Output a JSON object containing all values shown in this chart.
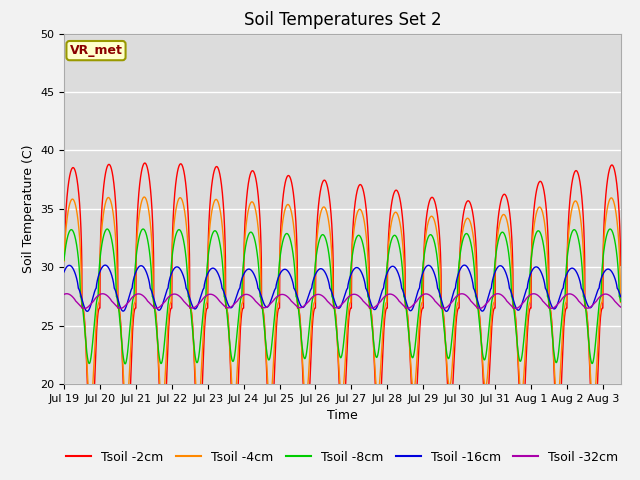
{
  "title": "Soil Temperatures Set 2",
  "xlabel": "Time",
  "ylabel": "Soil Temperature (C)",
  "ylim": [
    20,
    50
  ],
  "label_text": "VR_met",
  "xtick_labels": [
    "Jul 19",
    "Jul 20",
    "Jul 21",
    "Jul 22",
    "Jul 23",
    "Jul 24",
    "Jul 25",
    "Jul 26",
    "Jul 27",
    "Jul 28",
    "Jul 29",
    "Jul 30",
    "Jul 31",
    "Aug 1",
    "Aug 2",
    "Aug 3"
  ],
  "series": [
    {
      "name": "Tsoil -2cm",
      "color": "#ff0000",
      "mean": 26.5,
      "amp": 11.5,
      "phase": 0.0,
      "power": 3.0
    },
    {
      "name": "Tsoil -4cm",
      "color": "#ff8800",
      "mean": 27.0,
      "amp": 8.5,
      "phase": 0.1,
      "power": 2.5
    },
    {
      "name": "Tsoil -8cm",
      "color": "#00cc00",
      "mean": 27.5,
      "amp": 5.5,
      "phase": 0.3,
      "power": 2.0
    },
    {
      "name": "Tsoil -16cm",
      "color": "#0000dd",
      "mean": 28.2,
      "amp": 1.8,
      "phase": 0.65,
      "power": 1.5
    },
    {
      "name": "Tsoil -32cm",
      "color": "#aa00aa",
      "mean": 27.1,
      "amp": 0.6,
      "phase": 1.1,
      "power": 1.2
    }
  ],
  "bg_color": "#dcdcdc",
  "plot_bg": "#dcdcdc",
  "fig_bg": "#f2f2f2",
  "grid_color": "#ffffff",
  "title_fontsize": 12,
  "axis_fontsize": 9,
  "tick_fontsize": 8,
  "legend_fontsize": 9,
  "n_days": 15.5,
  "linewidth": 1.0
}
